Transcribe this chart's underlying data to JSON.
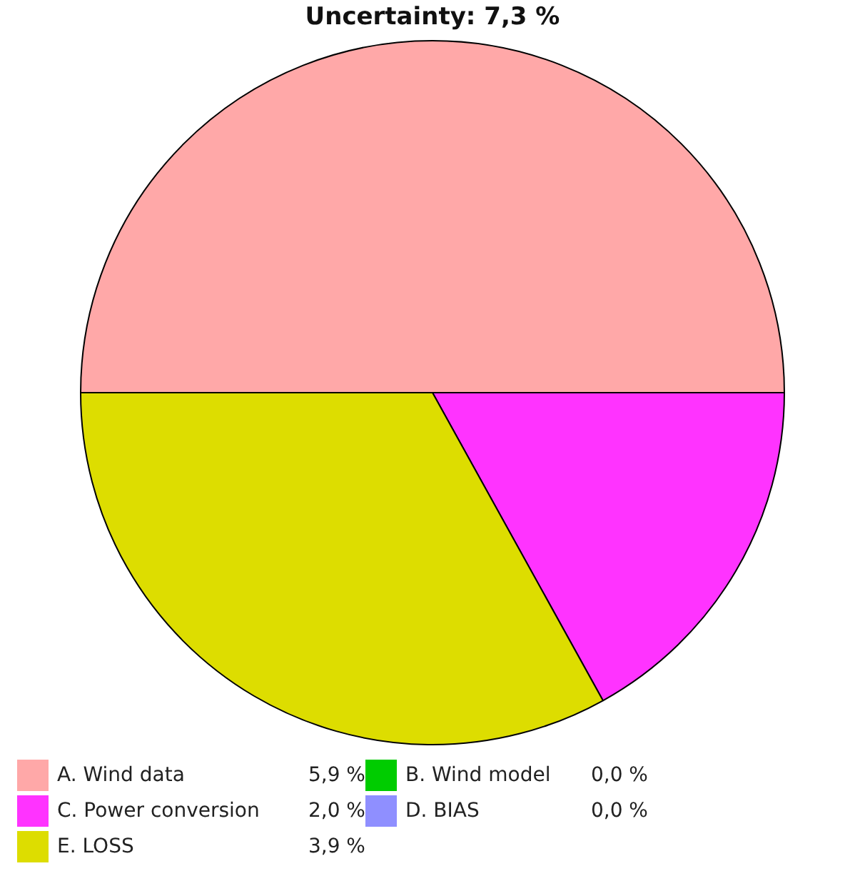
{
  "chart_data": {
    "type": "pie",
    "title": "Uncertainty: 7,3 %",
    "categories": [
      "A. Wind data",
      "B. Wind model",
      "C. Power conversion",
      "D. BIAS",
      "E. LOSS"
    ],
    "values": [
      5.9,
      0.0,
      2.0,
      0.0,
      3.9
    ],
    "colors": [
      "#ffa8a8",
      "#00cc00",
      "#ff33ff",
      "#8f8fff",
      "#dddd00"
    ],
    "value_labels": [
      "5,9 %",
      "0,0 %",
      "2,0 %",
      "0,0 %",
      "3,9 %"
    ],
    "legend": "bottom"
  }
}
